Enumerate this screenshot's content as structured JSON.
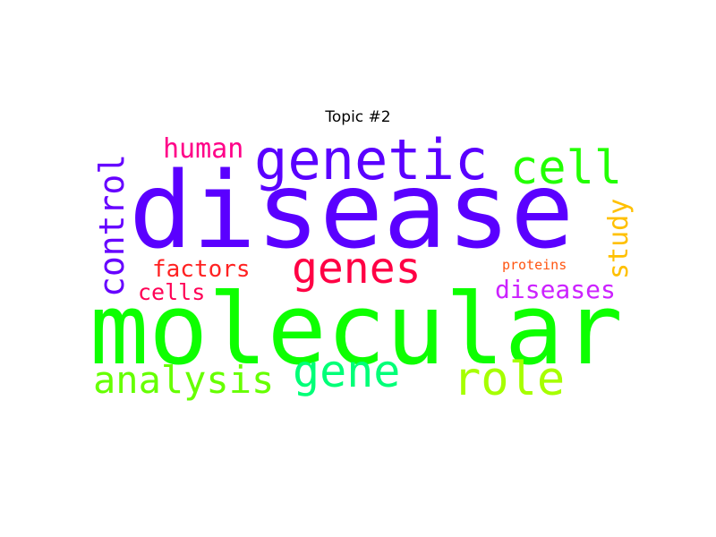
{
  "title": "Topic #2",
  "words": {
    "disease": {
      "text": "disease",
      "color": "#5a00ff",
      "orientation": "horizontal"
    },
    "molecular": {
      "text": "molecular",
      "color": "#0dff00",
      "orientation": "horizontal"
    },
    "genetic": {
      "text": "genetic",
      "color": "#5a00ff",
      "orientation": "horizontal"
    },
    "cell": {
      "text": "cell",
      "color": "#22ff00",
      "orientation": "horizontal"
    },
    "genes": {
      "text": "genes",
      "color": "#ff0044",
      "orientation": "horizontal"
    },
    "role": {
      "text": "role",
      "color": "#a6ff00",
      "orientation": "horizontal"
    },
    "gene": {
      "text": "gene",
      "color": "#00ff77",
      "orientation": "horizontal"
    },
    "analysis": {
      "text": "analysis",
      "color": "#66ff00",
      "orientation": "horizontal"
    },
    "human": {
      "text": "human",
      "color": "#ff0088",
      "orientation": "horizontal"
    },
    "factors": {
      "text": "factors",
      "color": "#ff2222",
      "orientation": "horizontal"
    },
    "cells": {
      "text": "cells",
      "color": "#ff0055",
      "orientation": "horizontal"
    },
    "diseases": {
      "text": "diseases",
      "color": "#cc22ff",
      "orientation": "horizontal"
    },
    "proteins": {
      "text": "proteins",
      "color": "#ff5511",
      "orientation": "horizontal"
    },
    "control": {
      "text": "control",
      "color": "#6600ff",
      "orientation": "vertical"
    },
    "study": {
      "text": "study",
      "color": "#ffc000",
      "orientation": "vertical"
    }
  }
}
